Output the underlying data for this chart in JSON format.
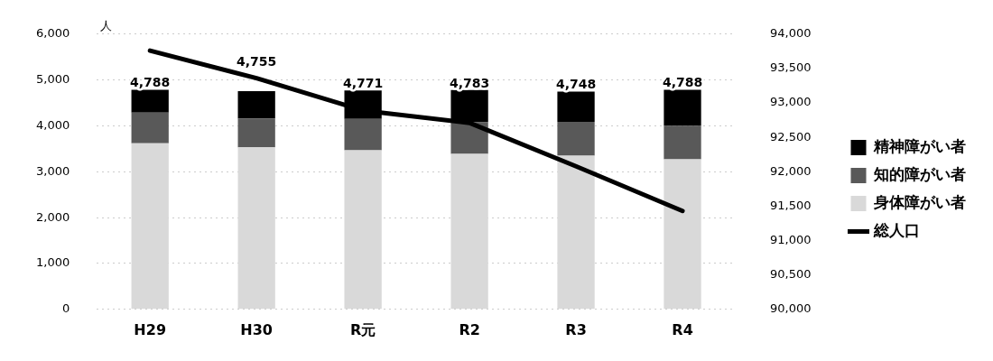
{
  "chart_data": {
    "type": "bar",
    "stacked": true,
    "ylabel": "人",
    "categories": [
      "H29",
      "H30",
      "R元",
      "R2",
      "R3",
      "R4"
    ],
    "series": [
      {
        "name": "身体障がい者",
        "color": "#d9d9d9",
        "values": [
          3620,
          3530,
          3470,
          3390,
          3350,
          3270
        ]
      },
      {
        "name": "知的障がい者",
        "color": "#595959",
        "values": [
          670,
          630,
          680,
          690,
          740,
          730
        ]
      },
      {
        "name": "精神障がい者",
        "color": "#000000",
        "values": [
          498,
          595,
          621,
          703,
          658,
          788
        ]
      },
      {
        "name": "総人口",
        "type": "line",
        "axis": "y2",
        "color": "#000000",
        "values": [
          93760,
          93360,
          92890,
          92710,
          92080,
          91430
        ]
      }
    ],
    "totals": [
      "4,788",
      "4,755",
      "4,771",
      "4,783",
      "4,748",
      "4,788"
    ],
    "ylim": [
      0,
      6000
    ],
    "yticks": [
      {
        "value": 0,
        "label": "0"
      },
      {
        "value": 1000,
        "label": "1,000"
      },
      {
        "value": 2000,
        "label": "2,000"
      },
      {
        "value": 3000,
        "label": "3,000"
      },
      {
        "value": 4000,
        "label": "4,000"
      },
      {
        "value": 5000,
        "label": "5,000"
      },
      {
        "value": 6000,
        "label": "6,000"
      }
    ],
    "y2lim": [
      90000,
      94000
    ],
    "y2ticks": [
      {
        "value": 90000,
        "label": "90,000"
      },
      {
        "value": 90500,
        "label": "90,500"
      },
      {
        "value": 91000,
        "label": "91,000"
      },
      {
        "value": 91500,
        "label": "91,500"
      },
      {
        "value": 92000,
        "label": "92,000"
      },
      {
        "value": 92500,
        "label": "92,500"
      },
      {
        "value": 93000,
        "label": "93,000"
      },
      {
        "value": 93500,
        "label": "93,500"
      },
      {
        "value": 94000,
        "label": "94,000"
      }
    ],
    "grid": "y",
    "legend": "right",
    "marker": "none"
  }
}
